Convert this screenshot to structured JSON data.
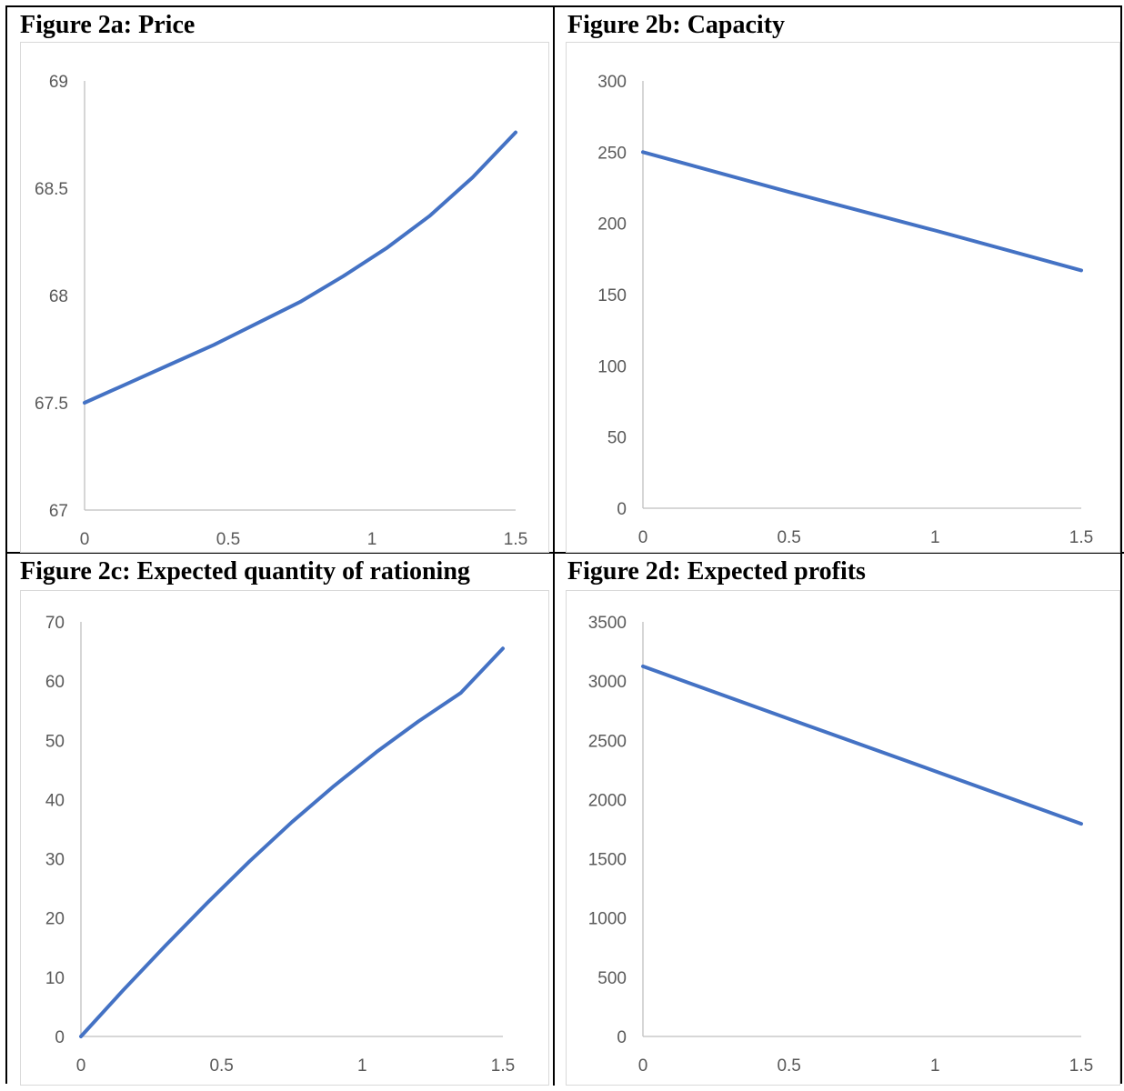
{
  "chart_data": [
    {
      "type": "line",
      "title": "Figure 2a: Price",
      "x_ticks": [
        "0",
        "0.5",
        "1",
        "1.5"
      ],
      "y_ticks": [
        "67",
        "67.5",
        "68",
        "68.5",
        "69"
      ],
      "xlim": [
        0,
        1.5
      ],
      "ylim": [
        67,
        69
      ],
      "color": "#4472c4",
      "series": [
        {
          "x": [
            0,
            0.15,
            0.3,
            0.45,
            0.6,
            0.75,
            0.9,
            1.05,
            1.2,
            1.35,
            1.5
          ],
          "values": [
            67.5,
            67.59,
            67.68,
            67.77,
            67.87,
            67.97,
            68.09,
            68.22,
            68.37,
            68.55,
            68.76
          ]
        }
      ]
    },
    {
      "type": "line",
      "title": "Figure 2b: Capacity",
      "x_ticks": [
        "0",
        "0.5",
        "1",
        "1.5"
      ],
      "y_ticks": [
        "0",
        "50",
        "100",
        "150",
        "200",
        "250",
        "300"
      ],
      "xlim": [
        0,
        1.5
      ],
      "ylim": [
        0,
        300
      ],
      "color": "#4472c4",
      "series": [
        {
          "x": [
            0,
            0.5,
            1,
            1.5
          ],
          "values": [
            250,
            222,
            195,
            167
          ]
        }
      ]
    },
    {
      "type": "line",
      "title": "Figure 2c: Expected quantity of rationing",
      "x_ticks": [
        "0",
        "0.5",
        "1",
        "1.5"
      ],
      "y_ticks": [
        "0",
        "10",
        "20",
        "30",
        "40",
        "50",
        "60",
        "70"
      ],
      "xlim": [
        0,
        1.5
      ],
      "ylim": [
        0,
        70
      ],
      "color": "#4472c4",
      "series": [
        {
          "x": [
            0,
            0.15,
            0.3,
            0.45,
            0.6,
            0.75,
            0.9,
            1.05,
            1.2,
            1.35,
            1.5
          ],
          "values": [
            0,
            7.8,
            15.3,
            22.6,
            29.6,
            36.2,
            42.3,
            48.0,
            53.2,
            58.0,
            65.5
          ]
        }
      ]
    },
    {
      "type": "line",
      "title": "Figure 2d: Expected profits",
      "x_ticks": [
        "0",
        "0.5",
        "1",
        "1.5"
      ],
      "y_ticks": [
        "0",
        "500",
        "1000",
        "1500",
        "2000",
        "2500",
        "3000",
        "3500"
      ],
      "xlim": [
        0,
        1.5
      ],
      "ylim": [
        0,
        3500
      ],
      "color": "#4472c4",
      "series": [
        {
          "x": [
            0,
            0.5,
            1,
            1.5
          ],
          "values": [
            3125,
            2680,
            2240,
            1795
          ]
        }
      ]
    }
  ]
}
